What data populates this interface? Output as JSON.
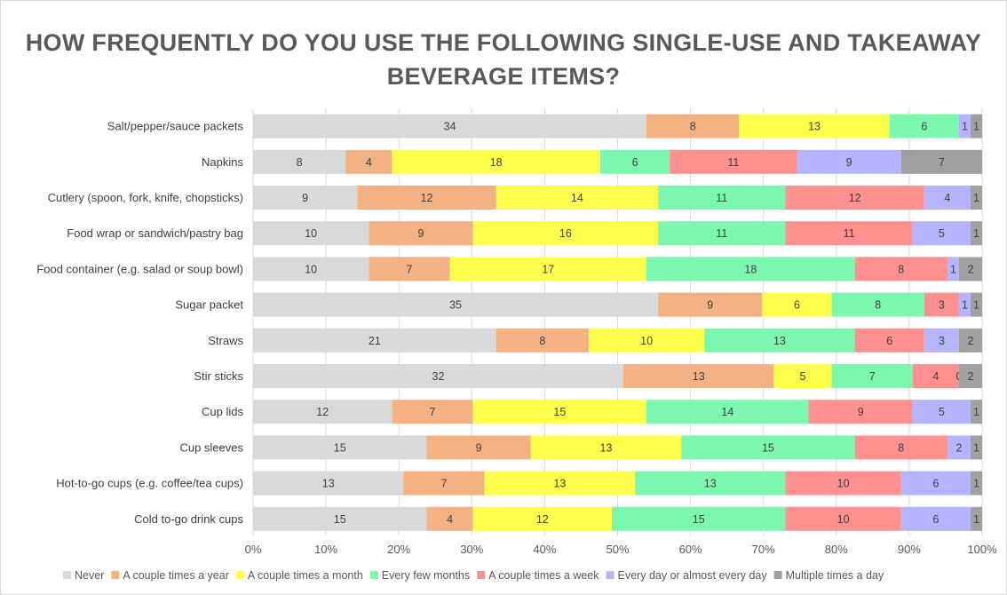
{
  "chart_data": {
    "type": "bar",
    "orientation": "horizontal",
    "stacked": "percent",
    "title": "HOW FREQUENTLY DO YOU USE THE FOLLOWING SINGLE-USE AND TAKEAWAY BEVERAGE ITEMS?",
    "categories": [
      "Salt/pepper/sauce packets",
      "Napkins",
      "Cutlery (spoon, fork, knife, chopsticks)",
      "Food wrap or sandwich/pastry bag",
      "Food container (e.g. salad or soup bowl)",
      "Sugar packet",
      "Straws",
      "Stir sticks",
      "Cup lids",
      "Cup sleeves",
      "Hot-to-go cups (e.g. coffee/tea cups)",
      "Cold to-go drink cups"
    ],
    "series": [
      {
        "name": "Never",
        "color": "#d9d9d9",
        "values": [
          34,
          8,
          9,
          10,
          10,
          35,
          21,
          32,
          12,
          15,
          13,
          15
        ]
      },
      {
        "name": "A couple times a year",
        "color": "#f4b183",
        "values": [
          8,
          4,
          12,
          9,
          7,
          9,
          8,
          13,
          7,
          9,
          7,
          4
        ]
      },
      {
        "name": "A couple times a month",
        "color": "#ffff4d",
        "values": [
          13,
          18,
          14,
          16,
          17,
          6,
          10,
          5,
          15,
          13,
          13,
          12
        ]
      },
      {
        "name": "Every few months",
        "color": "#7cf7b0",
        "values": [
          6,
          6,
          11,
          11,
          18,
          8,
          13,
          7,
          14,
          15,
          13,
          15
        ]
      },
      {
        "name": "A couple times a week",
        "color": "#ff9090",
        "values": [
          0,
          11,
          12,
          11,
          8,
          3,
          6,
          4,
          9,
          8,
          10,
          10
        ]
      },
      {
        "name": "Every day or almost every day",
        "color": "#b4b4ff",
        "values": [
          1,
          9,
          4,
          5,
          1,
          1,
          3,
          0,
          5,
          2,
          6,
          6
        ]
      },
      {
        "name": "Multiple times a day",
        "color": "#a0a0a0",
        "values": [
          1,
          7,
          1,
          1,
          2,
          1,
          2,
          2,
          1,
          1,
          1,
          1
        ]
      }
    ],
    "xticks": [
      "0%",
      "10%",
      "20%",
      "30%",
      "40%",
      "50%",
      "60%",
      "70%",
      "80%",
      "90%",
      "100%"
    ],
    "xlim": [
      0,
      100
    ],
    "grid": true,
    "legend": "bottom"
  }
}
